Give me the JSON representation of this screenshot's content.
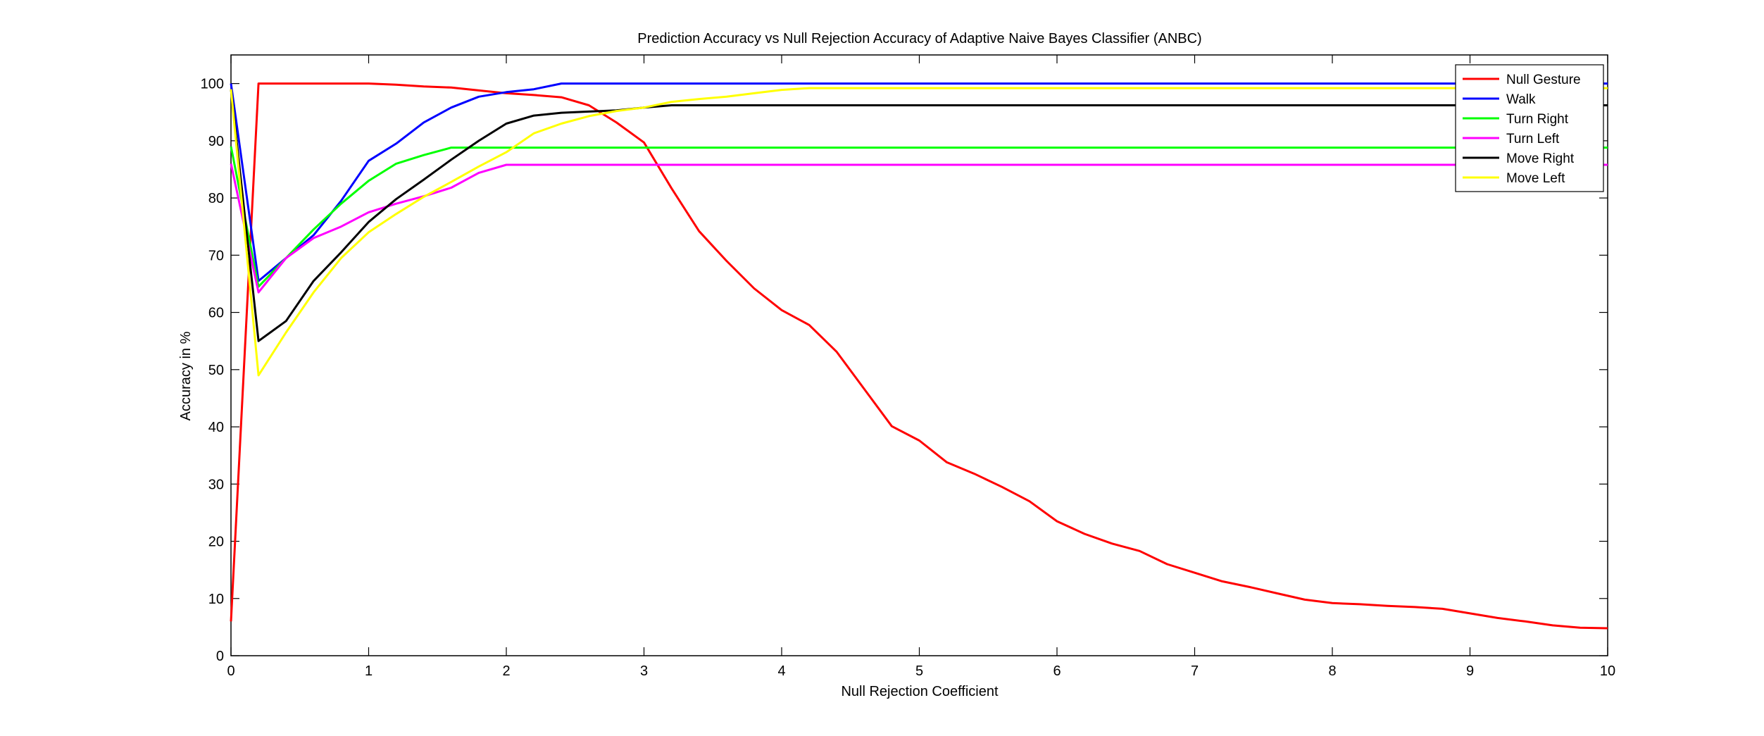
{
  "chart_data": {
    "type": "line",
    "title": "Prediction Accuracy vs Null Rejection Accuracy of Adaptive Naive Bayes Classifier (ANBC)",
    "xlabel": "Null Rejection Coefficient",
    "ylabel": "Accuracy in %",
    "xlim": [
      0,
      10
    ],
    "ylim": [
      0,
      105
    ],
    "xticks": [
      0,
      1,
      2,
      3,
      4,
      5,
      6,
      7,
      8,
      9,
      10
    ],
    "yticks": [
      0,
      10,
      20,
      30,
      40,
      50,
      60,
      70,
      80,
      90,
      100
    ],
    "grid": false,
    "legend_position": "top-right",
    "series": [
      {
        "name": "Null Gesture",
        "color": "#ff0000",
        "x": [
          0,
          0.2,
          0.4,
          0.6,
          0.8,
          1.0,
          1.2,
          1.4,
          1.6,
          1.8,
          2.0,
          2.2,
          2.4,
          2.6,
          2.8,
          3.0,
          3.2,
          3.4,
          3.6,
          3.8,
          4.0,
          4.2,
          4.4,
          4.6,
          4.8,
          5.0,
          5.2,
          5.4,
          5.6,
          5.8,
          6.0,
          6.2,
          6.4,
          6.6,
          6.8,
          7.0,
          7.2,
          7.4,
          7.6,
          7.8,
          8.0,
          8.2,
          8.4,
          8.6,
          8.8,
          9.0,
          9.2,
          9.4,
          9.6,
          9.8,
          10.0
        ],
        "values": [
          6,
          100,
          100,
          100,
          100,
          100,
          99.8,
          99.5,
          99.3,
          98.8,
          98.3,
          98.0,
          97.6,
          96.2,
          93.2,
          89.7,
          81.7,
          74.2,
          69.0,
          64.2,
          60.4,
          57.8,
          53.1,
          46.6,
          40.1,
          37.6,
          33.8,
          31.8,
          29.5,
          27.0,
          23.5,
          21.3,
          19.6,
          18.3,
          16.0,
          14.5,
          13.0,
          12.0,
          10.9,
          9.8,
          9.2,
          9.0,
          8.7,
          8.5,
          8.2,
          7.4,
          6.6,
          6.0,
          5.3,
          4.9,
          4.8
        ]
      },
      {
        "name": "Walk",
        "color": "#0000ff",
        "x": [
          0,
          0.2,
          0.4,
          0.6,
          0.8,
          1.0,
          1.2,
          1.4,
          1.6,
          1.8,
          2.0,
          2.2,
          2.4,
          2.6,
          2.8,
          3.0,
          10.0
        ],
        "values": [
          100,
          65.5,
          69.5,
          73.5,
          79.5,
          86.5,
          89.5,
          93.2,
          95.8,
          97.7,
          98.5,
          99.0,
          100,
          100,
          100,
          100,
          100
        ]
      },
      {
        "name": "Turn Right",
        "color": "#00ff00",
        "x": [
          0,
          0.2,
          0.4,
          0.6,
          0.8,
          1.0,
          1.2,
          1.4,
          1.6,
          1.8,
          2.0,
          10.0
        ],
        "values": [
          89,
          64.5,
          69.5,
          74.5,
          79,
          83,
          86,
          87.5,
          88.8,
          88.8,
          88.8,
          88.8
        ]
      },
      {
        "name": "Turn Left",
        "color": "#ff00ff",
        "x": [
          0,
          0.2,
          0.4,
          0.6,
          0.8,
          1.0,
          1.2,
          1.4,
          1.6,
          1.8,
          2.0,
          10.0
        ],
        "values": [
          86,
          63.5,
          69.5,
          73,
          75,
          77.5,
          79,
          80.3,
          81.8,
          84.4,
          85.8,
          85.8
        ]
      },
      {
        "name": "Move Right",
        "color": "#000000",
        "x": [
          0,
          0.2,
          0.4,
          0.6,
          0.8,
          1.0,
          1.2,
          1.4,
          1.6,
          1.8,
          2.0,
          2.2,
          2.4,
          2.6,
          2.8,
          3.0,
          3.2,
          10.0
        ],
        "values": [
          99,
          55,
          58.5,
          65.5,
          70.5,
          75.8,
          79.8,
          83.2,
          86.7,
          90.0,
          93.0,
          94.4,
          94.9,
          95.1,
          95.3,
          95.8,
          96.2,
          96.2
        ]
      },
      {
        "name": "Move Left",
        "color": "#ffff00",
        "x": [
          0,
          0.2,
          0.4,
          0.6,
          0.8,
          1.0,
          1.2,
          1.4,
          1.6,
          1.8,
          2.0,
          2.2,
          2.4,
          2.6,
          2.8,
          3.0,
          3.2,
          3.4,
          3.6,
          3.8,
          4.0,
          4.2,
          10.0
        ],
        "values": [
          99,
          49,
          56.5,
          63.5,
          69.5,
          74,
          77.2,
          80.2,
          82.8,
          85.5,
          88.0,
          91.3,
          93.0,
          94.3,
          95.2,
          95.8,
          96.8,
          97.3,
          97.7,
          98.3,
          98.9,
          99.2,
          99.2
        ]
      }
    ]
  }
}
